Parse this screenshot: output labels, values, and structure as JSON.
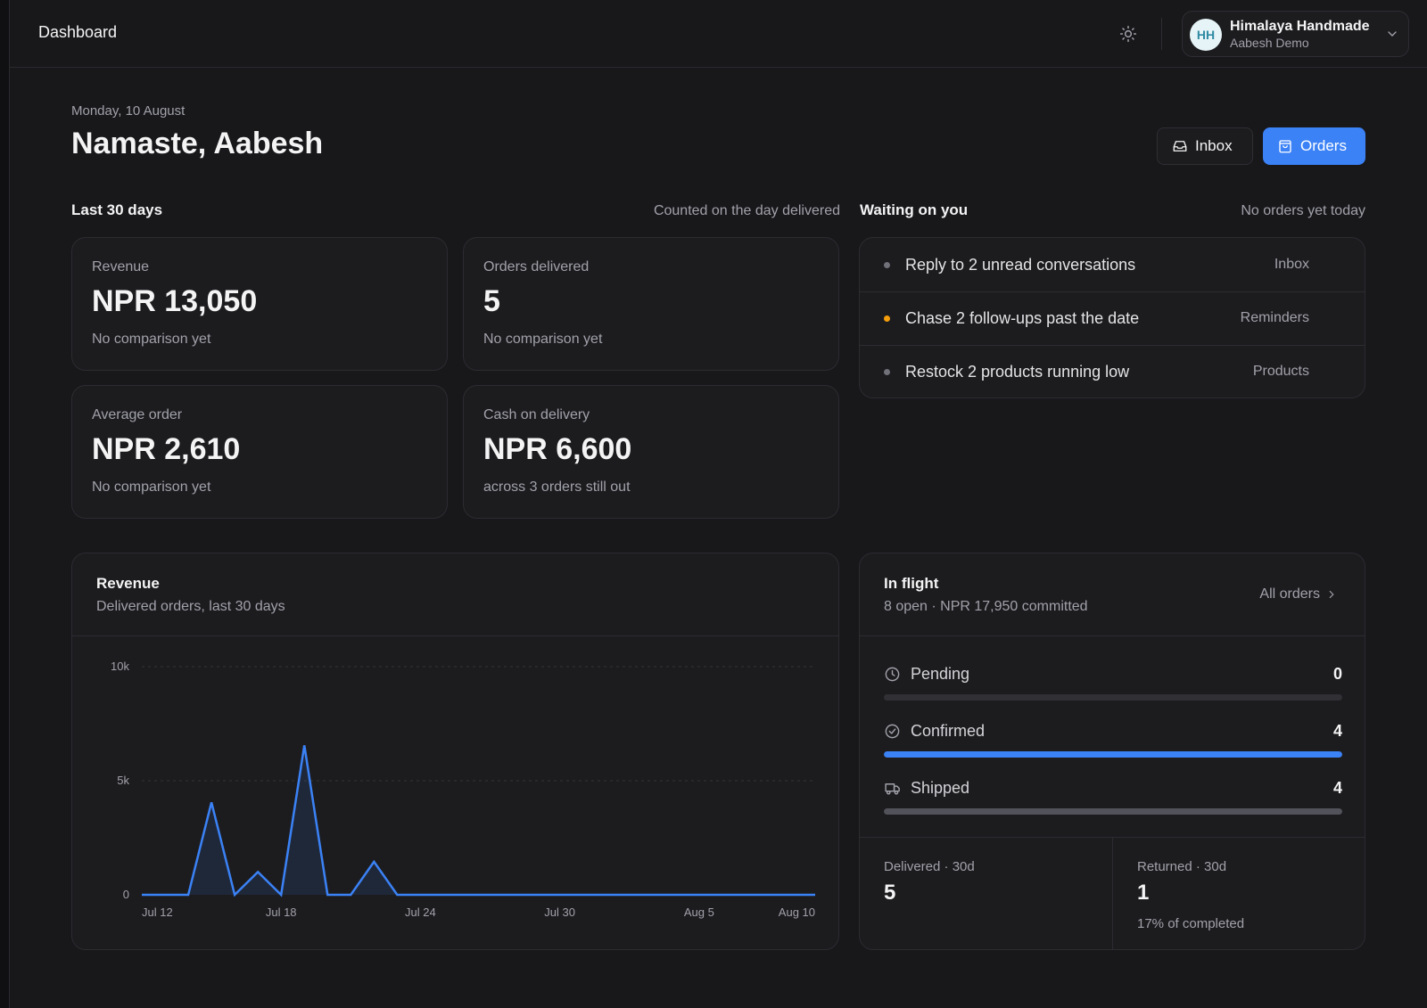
{
  "topbar": {
    "title": "Dashboard",
    "theme_icon": "sun-icon"
  },
  "account": {
    "initials": "HH",
    "name": "Himalaya Handmade",
    "subtitle": "Aabesh Demo"
  },
  "header": {
    "date": "Monday, 10 August",
    "greeting": "Namaste, Aabesh",
    "inbox_label": "Inbox",
    "orders_label": "Orders"
  },
  "colors": {
    "accent": "#3b82f6",
    "warning": "#f59e0b",
    "background": "#18181b",
    "card": "#1c1c1f"
  },
  "stats_section": {
    "title": "Last 30 days",
    "note": "Counted on the day delivered"
  },
  "stats": [
    {
      "label": "Revenue",
      "value": "NPR 13,050",
      "note": "No comparison yet"
    },
    {
      "label": "Orders delivered",
      "value": "5",
      "note": "No comparison yet"
    },
    {
      "label": "Average order",
      "value": "NPR 2,610",
      "note": "No comparison yet"
    },
    {
      "label": "Cash on delivery",
      "value": "NPR 6,600",
      "note": "across 3 orders still out"
    }
  ],
  "waiting": {
    "title": "Waiting on you",
    "note": "No orders yet today",
    "items": [
      {
        "text": "Reply to 2 unread conversations",
        "tag": "Inbox",
        "dot": "gray"
      },
      {
        "text": "Chase 2 follow-ups past the date",
        "tag": "Reminders",
        "dot": "orange"
      },
      {
        "text": "Restock 2 products running low",
        "tag": "Products",
        "dot": "gray"
      }
    ]
  },
  "revenue_panel": {
    "title": "Revenue",
    "subtitle": "Delivered orders, last 30 days"
  },
  "chart_data": {
    "type": "area",
    "title": "Revenue",
    "subtitle": "Delivered orders, last 30 days",
    "x_tick_labels": [
      "Jul 12",
      "Jul 18",
      "Jul 24",
      "Jul 30",
      "Aug 5",
      "Aug 10"
    ],
    "x": [
      "Jul 12",
      "Jul 13",
      "Jul 14",
      "Jul 15",
      "Jul 16",
      "Jul 17",
      "Jul 18",
      "Jul 19",
      "Jul 20",
      "Jul 21",
      "Jul 22",
      "Jul 23",
      "Jul 24",
      "Jul 25",
      "Jul 26",
      "Jul 27",
      "Jul 28",
      "Jul 29",
      "Jul 30",
      "Jul 31",
      "Aug 1",
      "Aug 2",
      "Aug 3",
      "Aug 4",
      "Aug 5",
      "Aug 6",
      "Aug 7",
      "Aug 8",
      "Aug 9",
      "Aug 10"
    ],
    "series": [
      {
        "values": [
          0,
          0,
          0,
          4050,
          0,
          1000,
          0,
          6550,
          0,
          0,
          1450,
          0,
          0,
          0,
          0,
          0,
          0,
          0,
          0,
          0,
          0,
          0,
          0,
          0,
          0,
          0,
          0,
          0,
          0,
          0
        ]
      }
    ],
    "y_tick_labels": [
      "0",
      "5k",
      "10k"
    ],
    "ylim": [
      0,
      10000
    ],
    "grid": true,
    "color": "#3b82f6"
  },
  "in_flight": {
    "title": "In flight",
    "subtitle": "8 open · NPR 17,950 committed",
    "all_orders_label": "All orders",
    "statuses": [
      {
        "name": "Pending",
        "count": "0",
        "fraction": 0,
        "icon": "clock-icon",
        "color": "#3a3a40"
      },
      {
        "name": "Confirmed",
        "count": "4",
        "fraction": 1,
        "icon": "check-circle-icon",
        "color": "#3b82f6"
      },
      {
        "name": "Shipped",
        "count": "4",
        "fraction": 1,
        "icon": "truck-icon",
        "color": "#52525b"
      }
    ],
    "delivered": {
      "label": "Delivered · 30d",
      "value": "5"
    },
    "returned": {
      "label": "Returned · 30d",
      "value": "1",
      "note": "17% of completed"
    }
  }
}
